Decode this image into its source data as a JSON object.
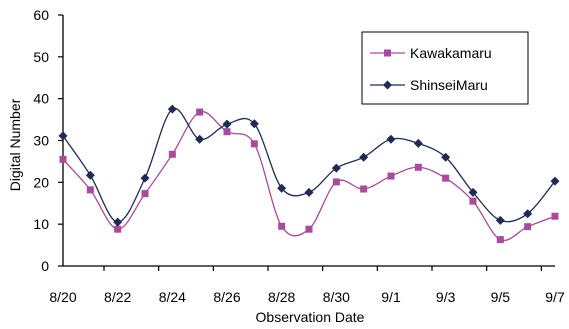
{
  "chart_data": {
    "type": "line",
    "title": "",
    "xlabel": "Observation Date",
    "ylabel": "Digital Number",
    "x": [
      "8/20",
      "8/21",
      "8/22",
      "8/23",
      "8/24",
      "8/25",
      "8/26",
      "8/27",
      "8/28",
      "8/29",
      "8/30",
      "8/31",
      "9/1",
      "9/2",
      "9/3",
      "9/4",
      "9/5",
      "9/6",
      "9/7"
    ],
    "x_tick_labels": [
      "8/20",
      "8/22",
      "8/24",
      "8/26",
      "8/28",
      "8/30",
      "9/1",
      "9/3",
      "9/5",
      "9/7"
    ],
    "ylim": [
      0,
      60
    ],
    "y_ticks": [
      0,
      10,
      20,
      30,
      40,
      50,
      60
    ],
    "grid": false,
    "legend_position": "top-right",
    "series": [
      {
        "name": "Kawakamaru",
        "marker": "square",
        "color": "#aa4a9c",
        "values": [
          25.5,
          18.2,
          8.8,
          17.3,
          26.7,
          36.8,
          32.1,
          29.2,
          9.5,
          8.8,
          20.1,
          18.4,
          21.5,
          23.6,
          21.0,
          15.5,
          6.3,
          9.4,
          11.9
        ]
      },
      {
        "name": "ShinseiMaru",
        "marker": "diamond",
        "color": "#1f2a55",
        "values": [
          31.1,
          21.7,
          10.5,
          21.0,
          37.5,
          30.3,
          33.9,
          34.0,
          18.6,
          17.6,
          23.4,
          26.0,
          30.3,
          29.3,
          26.0,
          17.6,
          10.9,
          12.5,
          20.3
        ]
      }
    ]
  }
}
